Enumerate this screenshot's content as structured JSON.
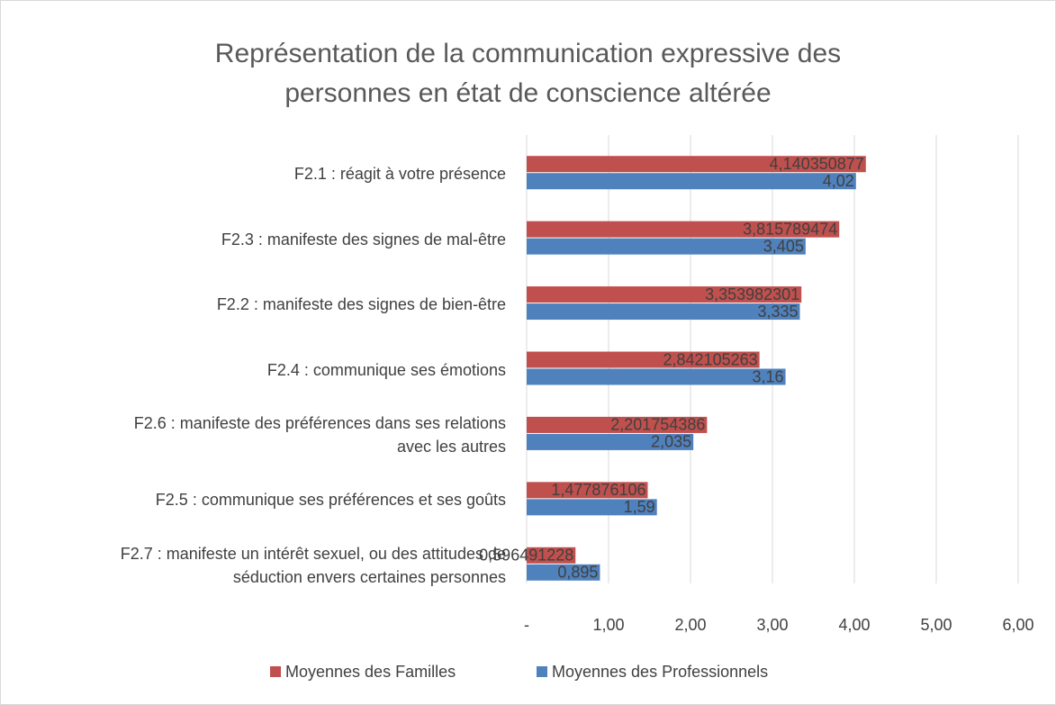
{
  "chart_data": {
    "type": "bar",
    "orientation": "horizontal",
    "title": "Représentation de la communication expressive des\npersonnes en état de conscience altérée",
    "categories": [
      "F2.1 : réagit à votre présence",
      "F2.3 : manifeste des signes de mal-être",
      "F2.2 : manifeste des signes de bien-être",
      "F2.4 : communique ses émotions",
      "F2.6 : manifeste des préférences dans ses relations\navec les autres",
      "F2.5 : communique ses préférences et ses goûts",
      "F2.7 : manifeste un intérêt sexuel, ou des attitudes de\nséduction envers certaines personnes"
    ],
    "series": [
      {
        "name": "Moyennes des Familles",
        "color": "#c0504d",
        "values": [
          4.140350877,
          3.815789474,
          3.353982301,
          2.842105263,
          2.201754386,
          1.477876106,
          0.596491228
        ],
        "value_labels": [
          "4,140350877",
          "3,815789474",
          "3,353982301",
          "2,842105263",
          "2,201754386",
          "1,477876106",
          "0,596491228"
        ]
      },
      {
        "name": "Moyennes des Professionnels",
        "color": "#4f81bd",
        "values": [
          4.02,
          3.405,
          3.335,
          3.16,
          2.035,
          1.59,
          0.895
        ],
        "value_labels": [
          "4,02",
          "3,405",
          "3,335",
          "3,16",
          "2,035",
          "1,59",
          "0,895"
        ]
      }
    ],
    "xlim": [
      0,
      6
    ],
    "xticks": [
      {
        "value": 0,
        "label": "-"
      },
      {
        "value": 1,
        "label": "1,00"
      },
      {
        "value": 2,
        "label": "2,00"
      },
      {
        "value": 3,
        "label": "3,00"
      },
      {
        "value": 4,
        "label": "4,00"
      },
      {
        "value": 5,
        "label": "5,00"
      },
      {
        "value": 6,
        "label": "6,00"
      }
    ],
    "grid": true,
    "legend": "bottom"
  }
}
